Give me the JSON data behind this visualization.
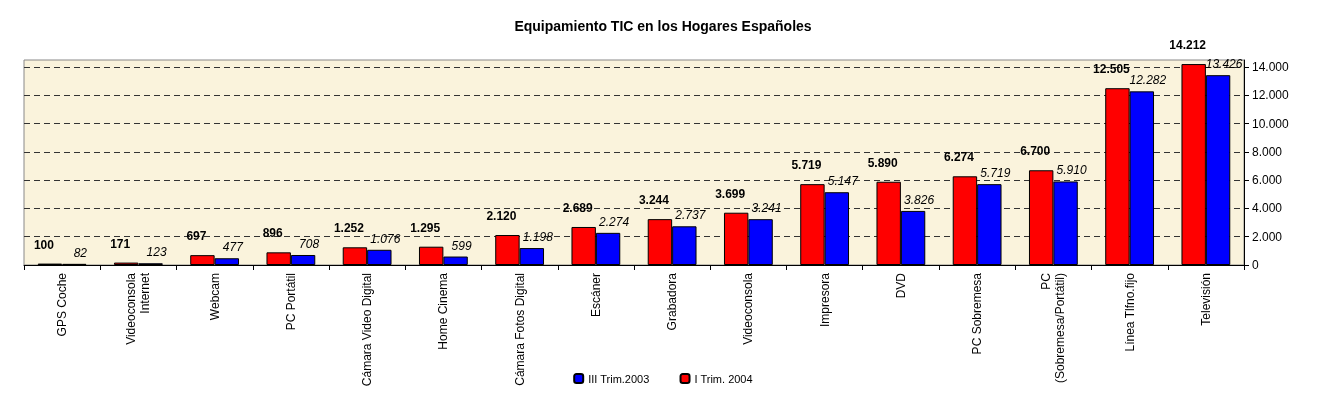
{
  "chart_data": {
    "type": "bar",
    "title": "Equipamiento TIC en los Hogares Españoles",
    "categories": [
      "GPS Coche",
      "Videoconsola\nInternet",
      "Webcam",
      "PC Portátil",
      "Cámara Video Digital",
      "Home Cinema",
      "Cámara Fotos Digital",
      "Escáner",
      "Grabadora",
      "Videoconsola",
      "Impresora",
      "DVD",
      "PC Sobremesa",
      "PC\n(Sobremesa/Portátil)",
      "Línea Tlfno.fijo",
      "Televisión"
    ],
    "series": [
      {
        "name": "I Trim. 2004",
        "color": "#ff0000",
        "values": [
          100,
          171,
          697,
          896,
          1252,
          1295,
          2120,
          2689,
          3244,
          3699,
          5719,
          5890,
          6274,
          6700,
          12505,
          14212
        ],
        "value_labels": [
          "100",
          "171",
          "697",
          "896",
          "1.252",
          "1.295",
          "2.120",
          "2.689",
          "3.244",
          "3.699",
          "5.719",
          "5.890",
          "6.274",
          "6.700",
          "12.505",
          "14.212"
        ]
      },
      {
        "name": "III Trim.2003",
        "color": "#0000ff",
        "values": [
          82,
          123,
          477,
          708,
          1076,
          599,
          1198,
          2274,
          2737,
          3241,
          5147,
          3826,
          5719,
          5910,
          12282,
          13426
        ],
        "value_labels": [
          "82",
          "123",
          "477",
          "708",
          "1.076",
          "599",
          "1.198",
          "2.274",
          "2.737",
          "3.241",
          "5.147",
          "3.826",
          "5.719",
          "5.910",
          "12.282",
          "13.426"
        ]
      }
    ],
    "ylim": [
      0,
      14500
    ],
    "yticks": [
      0,
      {
        "value": 2000,
        "label": "2.000"
      },
      {
        "value": 4000,
        "label": "4.000"
      },
      {
        "value": 6000,
        "label": "6.000"
      },
      {
        "value": 8000,
        "label": "8.000"
      },
      {
        "value": 10000,
        "label": "10.000"
      },
      {
        "value": 12000,
        "label": "12.000"
      },
      {
        "value": 14000,
        "label": "14.000"
      }
    ],
    "grid": "y",
    "legend": "bottom"
  }
}
